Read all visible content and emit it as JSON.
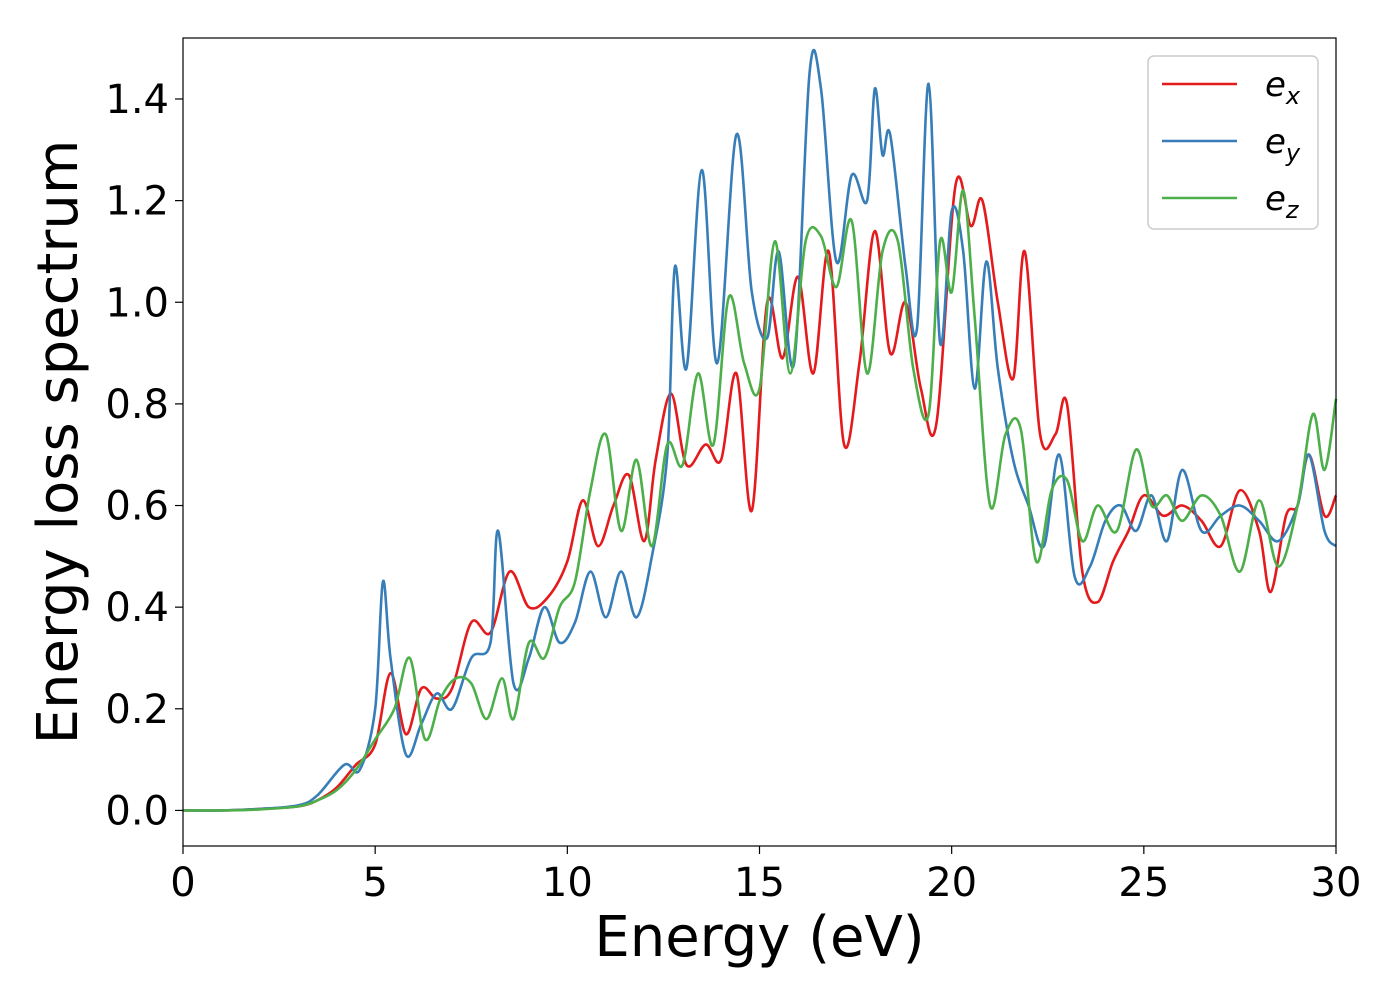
{
  "chart_data": {
    "type": "line",
    "title": "",
    "xlabel": "Energy (eV)",
    "ylabel": "Energy loss spectrum",
    "xlim": [
      0,
      30
    ],
    "ylim": [
      -0.07,
      1.52
    ],
    "xticks": [
      0,
      5,
      10,
      15,
      20,
      25,
      30
    ],
    "xtick_labels": [
      "0",
      "5",
      "10",
      "15",
      "20",
      "25",
      "30"
    ],
    "yticks": [
      0.0,
      0.2,
      0.4,
      0.6,
      0.8,
      1.0,
      1.2,
      1.4
    ],
    "ytick_labels": [
      "0.0",
      "0.2",
      "0.4",
      "0.6",
      "0.8",
      "1.0",
      "1.2",
      "1.4"
    ],
    "grid": false,
    "legend_position": "top-right",
    "series": [
      {
        "name": "e_x",
        "label_base": "e",
        "label_sub": "x",
        "color": "#e41a1c",
        "x": [
          0,
          1,
          2,
          3,
          3.5,
          4,
          4.5,
          5,
          5.4,
          5.8,
          6.2,
          6.6,
          7,
          7.5,
          8,
          8.5,
          9,
          9.5,
          10,
          10.4,
          10.8,
          11.2,
          11.6,
          12,
          12.3,
          12.7,
          13.1,
          13.6,
          14,
          14.4,
          14.8,
          15.2,
          15.6,
          16,
          16.4,
          16.8,
          17.2,
          17.6,
          18,
          18.4,
          18.8,
          19.2,
          19.6,
          20.1,
          20.5,
          20.8,
          21.2,
          21.6,
          21.9,
          22.3,
          22.7,
          23,
          23.4,
          23.8,
          24.2,
          24.6,
          25,
          25.5,
          26,
          26.5,
          27,
          27.5,
          28,
          28.3,
          28.7,
          29,
          29.3,
          29.7,
          30
        ],
        "y": [
          0.0,
          0.0,
          0.003,
          0.008,
          0.02,
          0.045,
          0.09,
          0.13,
          0.27,
          0.15,
          0.24,
          0.22,
          0.24,
          0.37,
          0.35,
          0.47,
          0.4,
          0.42,
          0.49,
          0.61,
          0.52,
          0.6,
          0.66,
          0.53,
          0.69,
          0.82,
          0.68,
          0.72,
          0.69,
          0.86,
          0.59,
          1.0,
          0.89,
          1.05,
          0.86,
          1.1,
          0.72,
          0.88,
          1.14,
          0.9,
          1.0,
          0.83,
          0.76,
          1.23,
          1.15,
          1.2,
          1.0,
          0.85,
          1.1,
          0.74,
          0.74,
          0.8,
          0.47,
          0.41,
          0.49,
          0.55,
          0.62,
          0.58,
          0.6,
          0.57,
          0.52,
          0.63,
          0.55,
          0.43,
          0.58,
          0.6,
          0.7,
          0.58,
          0.62
        ]
      },
      {
        "name": "e_y",
        "label_base": "e",
        "label_sub": "y",
        "color": "#377eb8",
        "x": [
          0,
          1,
          2,
          3,
          3.5,
          4.2,
          4.6,
          5.0,
          5.2,
          5.4,
          5.8,
          6.2,
          6.6,
          7,
          7.5,
          8,
          8.2,
          8.6,
          9,
          9.4,
          9.8,
          10.2,
          10.6,
          11,
          11.4,
          11.8,
          12.2,
          12.6,
          12.8,
          13.1,
          13.5,
          13.9,
          14.4,
          14.8,
          15.2,
          15.5,
          15.9,
          16.3,
          16.6,
          17,
          17.4,
          17.8,
          18.0,
          18.2,
          18.4,
          18.8,
          19.1,
          19.4,
          19.7,
          20.0,
          20.3,
          20.6,
          20.9,
          21.2,
          21.6,
          22,
          22.4,
          22.8,
          23.2,
          23.6,
          24,
          24.4,
          24.8,
          25.2,
          25.6,
          26,
          26.5,
          27,
          27.5,
          28,
          28.5,
          29,
          29.3,
          29.7,
          30
        ],
        "y": [
          0.0,
          0.0,
          0.003,
          0.01,
          0.03,
          0.09,
          0.08,
          0.2,
          0.45,
          0.3,
          0.11,
          0.17,
          0.23,
          0.2,
          0.3,
          0.33,
          0.55,
          0.25,
          0.3,
          0.4,
          0.33,
          0.37,
          0.47,
          0.38,
          0.47,
          0.38,
          0.5,
          0.7,
          1.07,
          0.87,
          1.26,
          0.88,
          1.33,
          1.02,
          0.93,
          1.1,
          0.88,
          1.45,
          1.42,
          1.08,
          1.25,
          1.2,
          1.42,
          1.29,
          1.33,
          1.07,
          0.95,
          1.43,
          0.92,
          1.18,
          1.1,
          0.83,
          1.08,
          0.87,
          0.69,
          0.6,
          0.52,
          0.7,
          0.46,
          0.48,
          0.57,
          0.6,
          0.55,
          0.62,
          0.53,
          0.67,
          0.55,
          0.58,
          0.6,
          0.57,
          0.53,
          0.6,
          0.7,
          0.55,
          0.52
        ]
      },
      {
        "name": "e_z",
        "label_base": "e",
        "label_sub": "z",
        "color": "#4daf4a",
        "x": [
          0,
          1,
          2,
          3,
          3.5,
          4,
          4.5,
          5,
          5.5,
          5.9,
          6.3,
          6.7,
          7.1,
          7.5,
          7.9,
          8.3,
          8.6,
          9,
          9.4,
          9.8,
          10.2,
          10.6,
          11,
          11.4,
          11.8,
          12.2,
          12.6,
          13,
          13.4,
          13.8,
          14.2,
          14.6,
          15,
          15.4,
          15.8,
          16.2,
          16.6,
          17,
          17.4,
          17.8,
          18.2,
          18.6,
          19.0,
          19.4,
          19.7,
          20.0,
          20.3,
          20.6,
          21.0,
          21.4,
          21.8,
          22.2,
          22.6,
          23.0,
          23.4,
          23.8,
          24.3,
          24.8,
          25.2,
          25.6,
          26,
          26.5,
          27,
          27.5,
          28,
          28.5,
          29,
          29.4,
          29.7,
          30
        ],
        "y": [
          0.0,
          0.0,
          0.002,
          0.008,
          0.02,
          0.04,
          0.08,
          0.14,
          0.2,
          0.3,
          0.14,
          0.22,
          0.26,
          0.25,
          0.18,
          0.26,
          0.18,
          0.33,
          0.3,
          0.4,
          0.45,
          0.63,
          0.74,
          0.55,
          0.69,
          0.52,
          0.72,
          0.68,
          0.86,
          0.72,
          1.01,
          0.88,
          0.83,
          1.12,
          0.86,
          1.12,
          1.13,
          1.03,
          1.16,
          0.86,
          1.1,
          1.12,
          0.87,
          0.78,
          1.12,
          1.02,
          1.22,
          0.97,
          0.6,
          0.74,
          0.75,
          0.49,
          0.63,
          0.65,
          0.53,
          0.6,
          0.55,
          0.71,
          0.6,
          0.62,
          0.57,
          0.62,
          0.58,
          0.47,
          0.61,
          0.48,
          0.6,
          0.78,
          0.67,
          0.81
        ]
      }
    ]
  }
}
